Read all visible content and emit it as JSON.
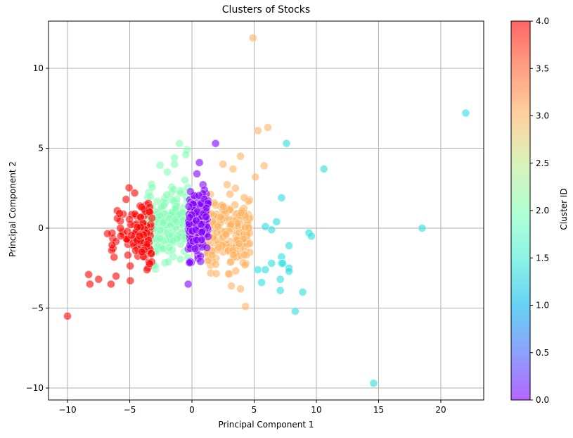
{
  "chart_data": {
    "type": "scatter",
    "title": "Clusters of Stocks",
    "xlabel": "Principal Component 1",
    "ylabel": "Principal Component 2",
    "xlim": [
      -11.3,
      23.7
    ],
    "ylim": [
      -10.8,
      12.9
    ],
    "xticks": [
      -10,
      -5,
      0,
      5,
      10,
      15,
      20
    ],
    "yticks": [
      -10,
      -5,
      0,
      5,
      10
    ],
    "grid": true,
    "colorbar": {
      "label": "Cluster ID",
      "range": [
        0.0,
        4.0
      ],
      "ticks": [
        "0.0",
        "0.5",
        "1.0",
        "1.5",
        "2.0",
        "2.5",
        "3.0",
        "3.5",
        "4.0"
      ],
      "colormap": "rainbow"
    },
    "clusters": [
      {
        "id": 0,
        "color": "#8000ff",
        "center": [
          0.3,
          0.3
        ],
        "approx_count": 200,
        "outliers": [
          [
            1.9,
            5.3
          ],
          [
            0.6,
            4.1
          ],
          [
            -0.3,
            -3.5
          ],
          [
            0.4,
            3.4
          ]
        ]
      },
      {
        "id": 1,
        "color": "#2adddd",
        "approx_count": 35,
        "points": [
          [
            22.0,
            7.2
          ],
          [
            18.5,
            0.0
          ],
          [
            14.6,
            -9.7
          ],
          [
            10.6,
            3.7
          ],
          [
            7.6,
            5.3
          ],
          [
            8.3,
            -5.2
          ],
          [
            8.9,
            -4.0
          ],
          [
            9.4,
            -0.3
          ],
          [
            9.6,
            -0.5
          ],
          [
            7.2,
            1.9
          ],
          [
            7.8,
            -1.1
          ],
          [
            6.8,
            0.4
          ],
          [
            6.4,
            -0.1
          ],
          [
            5.9,
            0.1
          ],
          [
            7.2,
            -1.8
          ],
          [
            7.2,
            -2.2
          ],
          [
            7.3,
            -2.2
          ],
          [
            7.8,
            -2.5
          ],
          [
            7.8,
            -2.7
          ],
          [
            6.4,
            -2.2
          ],
          [
            5.9,
            -2.6
          ],
          [
            5.3,
            -2.6
          ],
          [
            5.6,
            -3.4
          ],
          [
            7.1,
            -3.2
          ],
          [
            7.1,
            -3.9
          ]
        ]
      },
      {
        "id": 2,
        "color": "#80ffb4",
        "center": [
          -2.0,
          0.3
        ],
        "approx_count": 200,
        "outliers": [
          [
            -1.0,
            5.3
          ],
          [
            -0.4,
            4.9
          ],
          [
            -0.5,
            4.6
          ],
          [
            -1.4,
            4.4
          ],
          [
            -1.4,
            4.0
          ],
          [
            -1.9,
            -2.1
          ]
        ]
      },
      {
        "id": 3,
        "color": "#ffb360",
        "center": [
          2.5,
          -0.2
        ],
        "approx_count": 200,
        "outliers": [
          [
            4.9,
            11.9
          ],
          [
            6.1,
            6.3
          ],
          [
            5.3,
            6.1
          ],
          [
            3.9,
            4.5
          ],
          [
            2.5,
            4.0
          ],
          [
            5.8,
            3.9
          ],
          [
            3.3,
            3.7
          ],
          [
            5.1,
            3.2
          ],
          [
            4.3,
            -4.9
          ],
          [
            3.9,
            -3.8
          ]
        ]
      },
      {
        "id": 4,
        "color": "#ff0000",
        "center": [
          -4.5,
          -0.5
        ],
        "approx_count": 120,
        "outliers": [
          [
            -10.0,
            -5.5
          ],
          [
            -8.2,
            -3.5
          ],
          [
            -8.3,
            -2.9
          ],
          [
            -7.5,
            -3.2
          ],
          [
            -6.1,
            -3.0
          ],
          [
            -6.5,
            -3.5
          ],
          [
            -4.6,
            2.2
          ]
        ]
      }
    ]
  }
}
